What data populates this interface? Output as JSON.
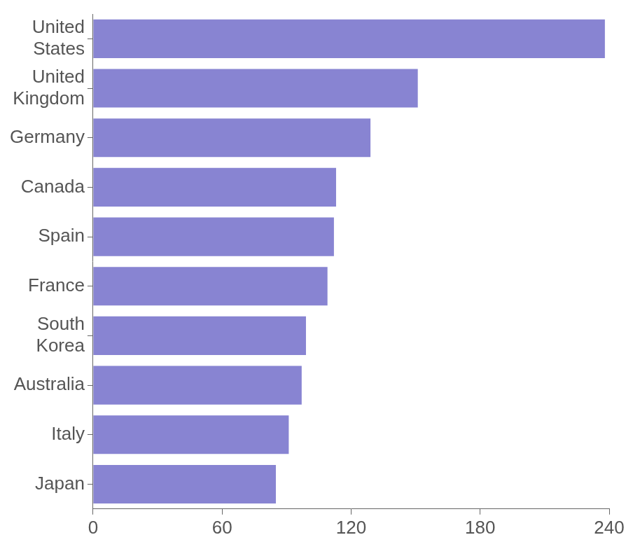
{
  "chart_data": {
    "type": "bar",
    "orientation": "horizontal",
    "categories": [
      "United States",
      "United Kingdom",
      "Germany",
      "Canada",
      "Spain",
      "France",
      "South Korea",
      "Australia",
      "Italy",
      "Japan"
    ],
    "values": [
      238,
      151,
      129,
      113,
      112,
      109,
      99,
      97,
      91,
      85
    ],
    "color": "#8884d2",
    "xlim": [
      0,
      240
    ],
    "xticks": [
      0,
      60,
      120,
      180,
      240
    ],
    "grid": false
  }
}
